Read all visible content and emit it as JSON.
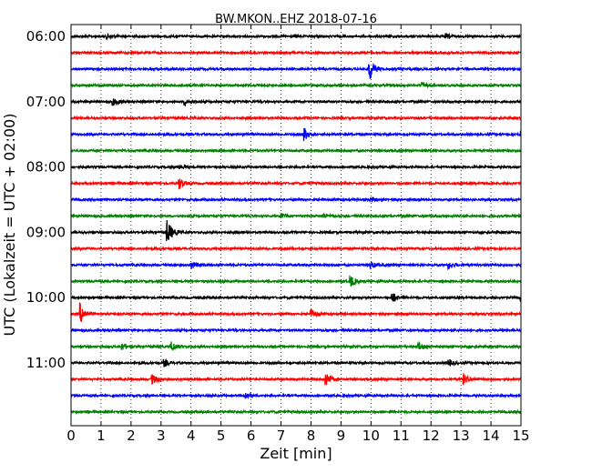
{
  "chart_data": {
    "type": "line",
    "title": "BW.MKON..EHZ 2018-07-16",
    "xlabel": "Zeit  [min]",
    "ylabel": "UTC (Lokalzeit = UTC + 02:00)",
    "xlim": [
      0,
      15
    ],
    "x_ticks": [
      "0",
      "1",
      "2",
      "3",
      "4",
      "5",
      "6",
      "7",
      "8",
      "9",
      "10",
      "11",
      "12",
      "13",
      "14",
      "15"
    ],
    "y_ticks": [
      "06:00",
      "07:00",
      "08:00",
      "09:00",
      "10:00",
      "11:00"
    ],
    "grid": "vertical dotted",
    "trace_colors": [
      "#000000",
      "#ff0000",
      "#0000ff",
      "#008000"
    ],
    "traces": [
      {
        "start": "06:00",
        "events": [
          {
            "t": 1.2,
            "amp": 0.3
          },
          {
            "t": 12.5,
            "amp": 0.3
          }
        ]
      },
      {
        "start": "06:15",
        "events": []
      },
      {
        "start": "06:30",
        "events": [
          {
            "t": 9.95,
            "amp": 1.4
          }
        ]
      },
      {
        "start": "06:45",
        "events": [
          {
            "t": 11.7,
            "amp": 0.3
          }
        ]
      },
      {
        "start": "07:00",
        "events": [
          {
            "t": 1.4,
            "amp": 0.4
          },
          {
            "t": 3.8,
            "amp": 0.4
          }
        ]
      },
      {
        "start": "07:15",
        "events": []
      },
      {
        "start": "07:30",
        "events": [
          {
            "t": 7.75,
            "amp": 0.9
          },
          {
            "t": 15.0,
            "amp": 0.6
          }
        ]
      },
      {
        "start": "07:45",
        "events": []
      },
      {
        "start": "08:00",
        "events": [
          {
            "t": 3.6,
            "amp": 0.3
          }
        ]
      },
      {
        "start": "08:15",
        "events": [
          {
            "t": 3.6,
            "amp": 0.7
          }
        ]
      },
      {
        "start": "08:30",
        "events": [
          {
            "t": 10.0,
            "amp": 0.2
          }
        ]
      },
      {
        "start": "08:45",
        "events": [
          {
            "t": 7.0,
            "amp": 0.3
          },
          {
            "t": 8.4,
            "amp": 0.3
          }
        ]
      },
      {
        "start": "09:00",
        "events": [
          {
            "t": 3.2,
            "amp": 1.5
          }
        ]
      },
      {
        "start": "09:15",
        "events": []
      },
      {
        "start": "09:30",
        "events": [
          {
            "t": 4.0,
            "amp": 0.5
          },
          {
            "t": 10.0,
            "amp": 0.4
          },
          {
            "t": 12.6,
            "amp": 0.4
          }
        ]
      },
      {
        "start": "09:45",
        "events": [
          {
            "t": 9.3,
            "amp": 0.8
          }
        ]
      },
      {
        "start": "10:00",
        "events": [
          {
            "t": 10.7,
            "amp": 0.7
          },
          {
            "t": 15.0,
            "amp": 0.5
          }
        ]
      },
      {
        "start": "10:15",
        "events": [
          {
            "t": 0.3,
            "amp": 1.3
          },
          {
            "t": 8.0,
            "amp": 0.6
          }
        ]
      },
      {
        "start": "10:30",
        "events": []
      },
      {
        "start": "10:45",
        "events": [
          {
            "t": 1.7,
            "amp": 0.4
          },
          {
            "t": 3.35,
            "amp": 0.6
          },
          {
            "t": 11.6,
            "amp": 0.4
          }
        ]
      },
      {
        "start": "11:00",
        "events": [
          {
            "t": 3.1,
            "amp": 0.4
          },
          {
            "t": 12.6,
            "amp": 0.4
          }
        ]
      },
      {
        "start": "11:15",
        "events": [
          {
            "t": 2.7,
            "amp": 0.6
          },
          {
            "t": 8.5,
            "amp": 0.9
          },
          {
            "t": 13.1,
            "amp": 0.6
          }
        ]
      },
      {
        "start": "11:30",
        "events": [
          {
            "t": 5.8,
            "amp": 0.4
          }
        ]
      },
      {
        "start": "11:45",
        "events": []
      }
    ]
  }
}
